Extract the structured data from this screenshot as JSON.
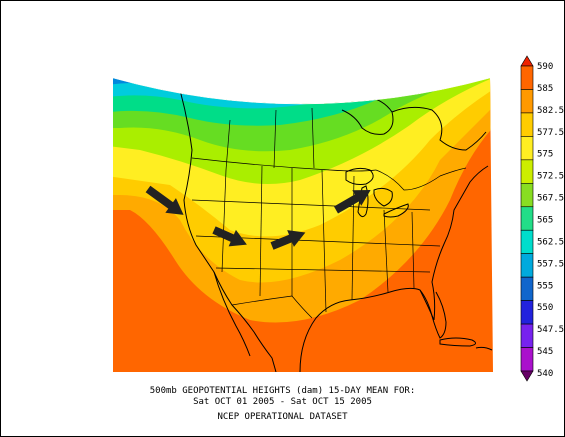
{
  "caption": {
    "line1": "500mb GEOPOTENTIAL HEIGHTS (dam)   15-DAY MEAN FOR:",
    "line2": "Sat OCT 01 2005 - Sat OCT 15 2005",
    "line3": "NCEP OPERATIONAL DATASET"
  },
  "colorbar": {
    "units": "dam",
    "levels": [
      {
        "label": "590",
        "color": "#ee2200"
      },
      {
        "label": "585",
        "color": "#ff6600"
      },
      {
        "label": "582.5",
        "color": "#ff9900"
      },
      {
        "label": "577.5",
        "color": "#ffcc00"
      },
      {
        "label": "575",
        "color": "#ffee22"
      },
      {
        "label": "572.5",
        "color": "#ccee00"
      },
      {
        "label": "567.5",
        "color": "#88dd22"
      },
      {
        "label": "565",
        "color": "#22dd88"
      },
      {
        "label": "562.5",
        "color": "#00ddcc"
      },
      {
        "label": "557.5",
        "color": "#00aadd"
      },
      {
        "label": "555",
        "color": "#1166cc"
      },
      {
        "label": "550",
        "color": "#2222dd"
      },
      {
        "label": "547.5",
        "color": "#7722ee"
      },
      {
        "label": "545",
        "color": "#aa11cc"
      },
      {
        "label": "540",
        "color": "#660066"
      }
    ]
  },
  "map": {
    "region": "North America",
    "contour_colors": {
      "c1": "#440044",
      "c2": "#770077",
      "c3": "#aa00cc",
      "c4": "#5511dd",
      "c5": "#1144dd",
      "c6": "#0088dd",
      "c7": "#00ccdd",
      "c8": "#00dd88",
      "c9": "#66dd22",
      "c10": "#aaee00",
      "c11": "#eeee00",
      "c12": "#ffcc00",
      "c13": "#ffaa00",
      "c14": "#ff6600"
    },
    "arrows": [
      {
        "name": "pacific-northwest-arrow",
        "from": "northwest",
        "to": "southeast"
      },
      {
        "name": "great-basin-arrow",
        "from": "northwest",
        "to": "southeast"
      },
      {
        "name": "southern-plains-arrow",
        "from": "southwest",
        "to": "northeast"
      },
      {
        "name": "great-lakes-arrow",
        "from": "southwest",
        "to": "northeast"
      }
    ]
  }
}
